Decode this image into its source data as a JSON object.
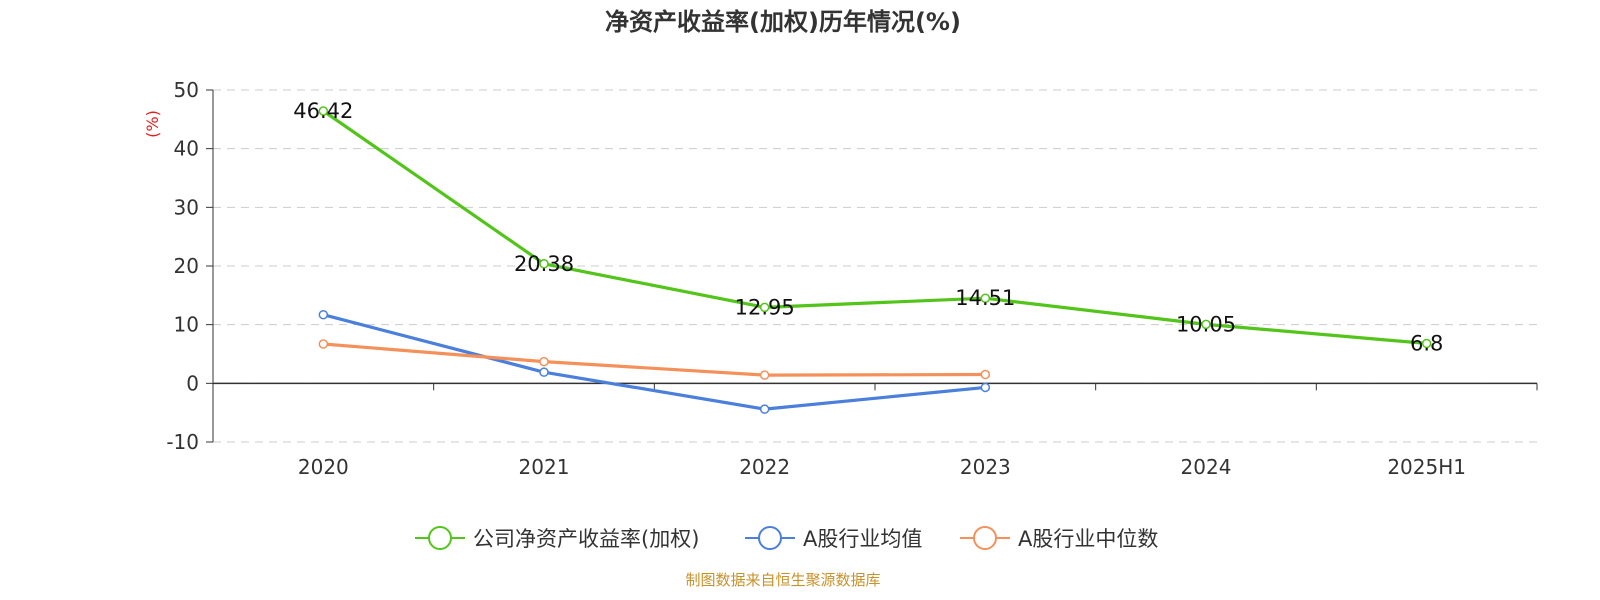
{
  "chart_data": {
    "type": "line",
    "title": "净资产收益率(加权)历年情况(%)",
    "y_unit": "(%)",
    "categories": [
      "2020",
      "2021",
      "2022",
      "2023",
      "2024",
      "2025H1"
    ],
    "ylim": [
      -10,
      50
    ],
    "yticks": [
      -10,
      0,
      10,
      20,
      30,
      40,
      50
    ],
    "grid": true,
    "legend_position": "bottom",
    "series": [
      {
        "name": "公司净资产收益率(加权)",
        "color": "#52c41a",
        "values": [
          46.42,
          20.38,
          12.95,
          14.51,
          10.05,
          6.8
        ],
        "labels": [
          "46.42",
          "20.38",
          "12.95",
          "14.51",
          "10.05",
          "6.8"
        ]
      },
      {
        "name": "A股行业均值",
        "color": "#4a7fdb",
        "values": [
          11.7,
          1.9,
          -4.4,
          -0.7,
          null,
          null
        ]
      },
      {
        "name": "A股行业中位数",
        "color": "#f4915b",
        "values": [
          6.7,
          3.7,
          1.4,
          1.5,
          null,
          null
        ]
      }
    ]
  },
  "source": {
    "text": "制图数据来自恒生聚源数据库",
    "color": "#c8922a"
  },
  "unit_color": "#e02020"
}
